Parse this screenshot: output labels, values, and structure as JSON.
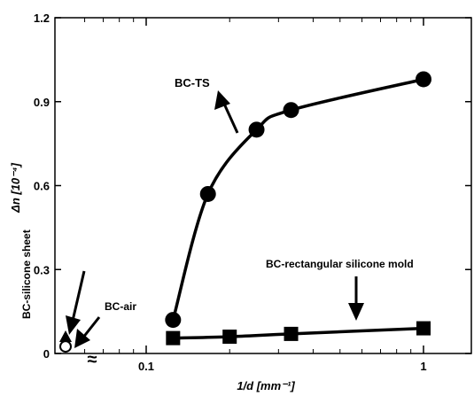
{
  "chart_data": {
    "type": "line",
    "xlabel": "1/d [mm⁻¹]",
    "ylabel": "Δn [10⁻⁴]",
    "xscale": "log",
    "xlim": [
      0.05,
      1.6
    ],
    "ylim": [
      0,
      1.2
    ],
    "grid": false,
    "legend": "none",
    "x_ticks": [
      {
        "value": 0.1,
        "label": "0.1"
      },
      {
        "value": 1,
        "label": "1"
      }
    ],
    "y_ticks": [
      {
        "value": 0,
        "label": "0"
      },
      {
        "value": 0.3,
        "label": "0.3"
      },
      {
        "value": 0.6,
        "label": "0.6"
      },
      {
        "value": 0.9,
        "label": "0.9"
      },
      {
        "value": 1.2,
        "label": "1.2"
      }
    ],
    "axis_break": "≈",
    "series": [
      {
        "name": "BC-TS",
        "marker": "circle",
        "x": [
          0.125,
          0.167,
          0.25,
          0.333,
          1.0
        ],
        "y": [
          0.12,
          0.57,
          0.8,
          0.87,
          0.98
        ]
      },
      {
        "name": "BC-rectangular silicone mold",
        "marker": "square",
        "x": [
          0.125,
          0.2,
          0.333,
          1.0
        ],
        "y": [
          0.055,
          0.06,
          0.07,
          0.09
        ]
      }
    ],
    "zero_thickness_points": [
      {
        "name": "BC-silicone sheet",
        "marker": "filled-triangle",
        "y": 0.06
      },
      {
        "name": "BC-air",
        "marker": "open-circle",
        "y": 0.025
      }
    ],
    "annotations": [
      "BC-TS",
      "BC-rectangular silicone mold",
      "BC-silicone sheet",
      "BC-air"
    ]
  }
}
